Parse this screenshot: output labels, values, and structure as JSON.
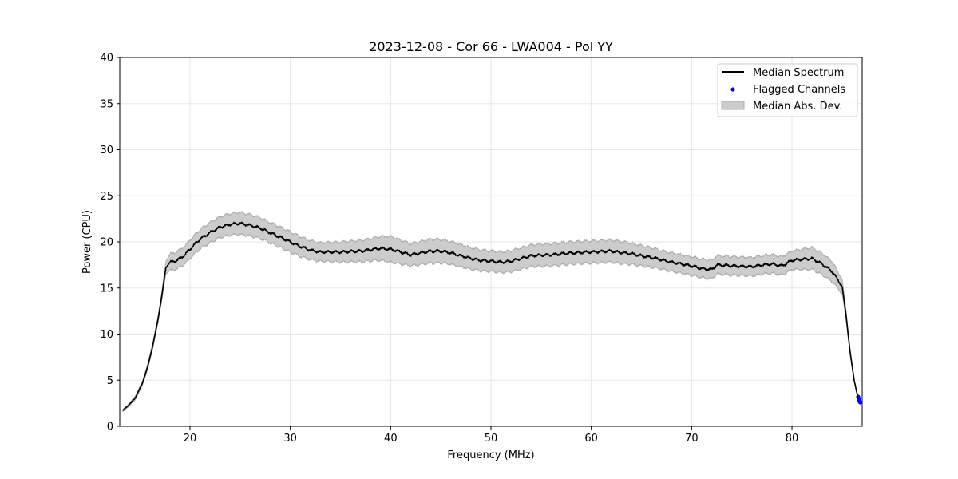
{
  "chart_data": {
    "type": "line",
    "title": "2023-12-08 - Cor 66 - LWA004 - Pol YY",
    "xlabel": "Frequency (MHz)",
    "ylabel": "Power (CPU)",
    "xlim": [
      13,
      87
    ],
    "ylim": [
      0,
      40
    ],
    "xticks": [
      20,
      30,
      40,
      50,
      60,
      70,
      80
    ],
    "yticks": [
      0,
      5,
      10,
      15,
      20,
      25,
      30,
      35,
      40
    ],
    "grid": true,
    "legend_position": "top-right",
    "series": [
      {
        "name": "Median Spectrum",
        "kind": "line",
        "color": "#000000",
        "x": [
          13.3,
          13.8,
          14.5,
          15.2,
          15.8,
          16.3,
          16.8,
          17.2,
          17.6,
          18.0,
          18.5,
          19.0,
          19.5,
          20.0,
          21.0,
          22.0,
          23.0,
          24.0,
          25.0,
          26.0,
          27.0,
          28.0,
          29.0,
          30.0,
          31.0,
          32.0,
          33.0,
          35.0,
          37.0,
          39.0,
          40.0,
          41.0,
          42.0,
          43.0,
          44.0,
          45.0,
          46.0,
          47.0,
          48.0,
          49.0,
          50.0,
          51.0,
          52.0,
          53.0,
          54.0,
          56.0,
          58.0,
          60.0,
          62.0,
          64.0,
          66.0,
          68.0,
          70.0,
          71.0,
          72.0,
          72.5,
          74.0,
          76.0,
          77.0,
          78.0,
          79.0,
          80.0,
          81.0,
          82.0,
          83.0,
          84.0,
          85.0,
          85.4,
          85.8,
          86.2,
          86.5,
          86.8
        ],
        "y": [
          1.7,
          2.2,
          3.0,
          4.5,
          6.5,
          8.8,
          11.5,
          14.2,
          17.2,
          17.8,
          17.9,
          18.2,
          18.6,
          19.2,
          20.3,
          21.0,
          21.6,
          21.9,
          22.0,
          21.8,
          21.5,
          21.0,
          20.5,
          20.0,
          19.5,
          19.1,
          18.9,
          18.9,
          19.0,
          19.3,
          19.2,
          18.9,
          18.6,
          18.8,
          19.0,
          19.0,
          18.8,
          18.5,
          18.2,
          18.0,
          17.9,
          17.8,
          17.9,
          18.2,
          18.5,
          18.6,
          18.8,
          18.9,
          19.0,
          18.7,
          18.3,
          17.8,
          17.4,
          17.1,
          17.0,
          17.5,
          17.4,
          17.3,
          17.5,
          17.6,
          17.4,
          18.0,
          18.1,
          18.2,
          17.6,
          16.8,
          15.2,
          12.0,
          8.0,
          5.0,
          3.5,
          2.8
        ]
      },
      {
        "name": "Flagged Channels",
        "kind": "scatter",
        "color": "#0000ff",
        "x": [
          86.6,
          86.65,
          86.7,
          86.75,
          86.8
        ],
        "y": [
          3.2,
          3.0,
          2.8,
          2.7,
          2.6
        ]
      },
      {
        "name": "Median Abs. Dev.",
        "kind": "band",
        "color": "#b3b3b3",
        "halfwidth_x": [
          13.3,
          17.0,
          18.0,
          22.0,
          25.0,
          28.0,
          30.0,
          33.0,
          38.0,
          40.0,
          42.0,
          44.0,
          47.0,
          50.0,
          55.0,
          60.0,
          63.0,
          67.0,
          70.0,
          72.5,
          75.0,
          80.0,
          82.0,
          84.0,
          85.0,
          86.0,
          86.8
        ],
        "halfwidth": [
          0.1,
          0.4,
          0.9,
          1.1,
          1.2,
          1.1,
          1.1,
          1.0,
          1.2,
          1.4,
          1.2,
          1.3,
          1.2,
          1.1,
          1.2,
          1.2,
          1.2,
          1.0,
          1.0,
          1.0,
          1.0,
          1.0,
          1.2,
          1.1,
          0.8,
          0.2,
          0.1
        ]
      }
    ]
  }
}
